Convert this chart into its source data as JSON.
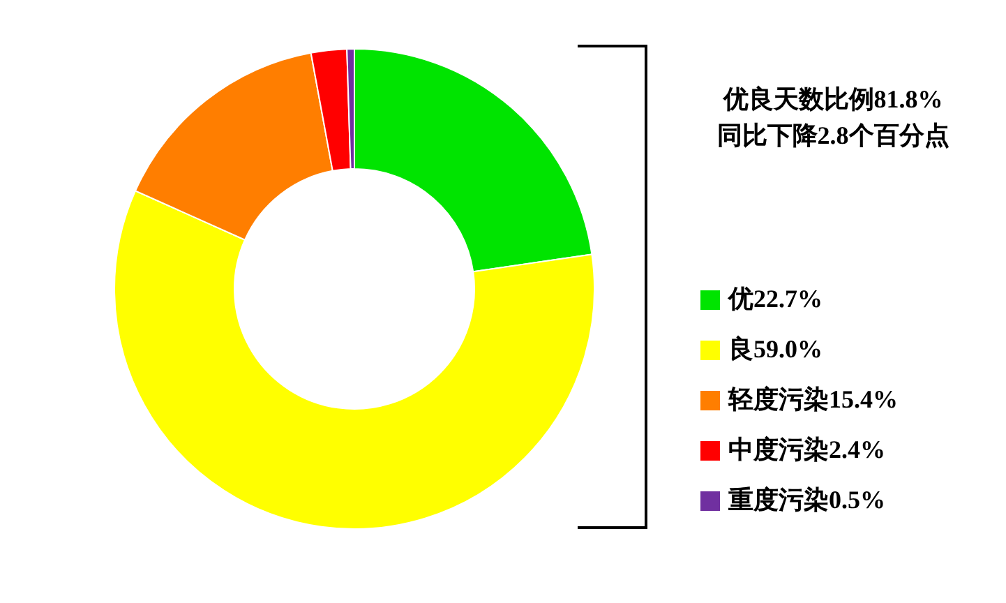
{
  "chart_data": {
    "type": "donut",
    "title": "优良天数比例81.8%",
    "subtitle": "同比下降2.8个百分点",
    "categories": [
      "优",
      "良",
      "轻度污染",
      "中度污染",
      "重度污染"
    ],
    "values": [
      22.7,
      59.0,
      15.4,
      2.4,
      0.5
    ],
    "value_labels": [
      "22.7%",
      "59.0%",
      "15.4%",
      "2.4%",
      "0.5%"
    ],
    "colors": [
      "#00e400",
      "#ffff00",
      "#ff7e00",
      "#ff0000",
      "#7030a0"
    ],
    "legend": "right"
  }
}
